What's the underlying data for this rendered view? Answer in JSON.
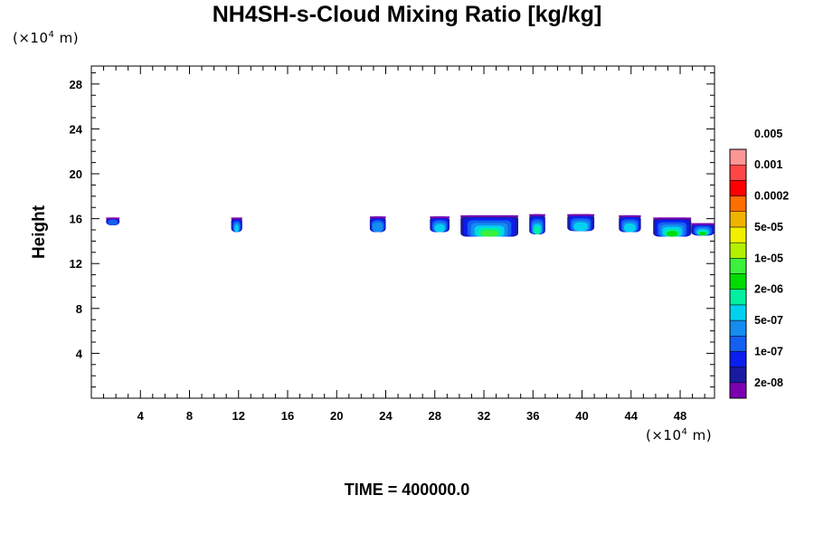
{
  "chart_data": {
    "type": "heatmap",
    "title": "NH4SH-s-Cloud Mixing Ratio [kg/kg]",
    "ylabel": "Height",
    "xlabel": "",
    "x_unit": "(×10⁴ m)",
    "y_unit": "(×10⁴ m)",
    "x_unit_base": "(×10",
    "y_unit_base": "(×10",
    "unit_exp": "4",
    "unit_tail": " m)",
    "xlim": [
      0,
      50.8
    ],
    "ylim": [
      0,
      29.6
    ],
    "x_ticks": [
      4,
      8,
      12,
      16,
      20,
      24,
      28,
      32,
      36,
      40,
      44,
      48
    ],
    "y_ticks": [
      4,
      8,
      12,
      16,
      20,
      24,
      28
    ],
    "colorbar": {
      "colors": [
        "#7b00b0",
        "#1a1aa0",
        "#0a1ef0",
        "#1460f0",
        "#148cf0",
        "#00d2f0",
        "#00f0a0",
        "#00dc00",
        "#3cf03c",
        "#b4f000",
        "#f0f000",
        "#f0b400",
        "#ff6e00",
        "#ff0000",
        "#ff4646",
        "#ff9696"
      ],
      "labels": [
        "2e-08",
        "1e-07",
        "5e-07",
        "2e-06",
        "1e-05",
        "5e-05",
        "0.0002",
        "0.001",
        "0.005"
      ]
    },
    "cloud_blobs": [
      {
        "x": [
          1.2,
          2.3
        ],
        "y": [
          15.4,
          16.1
        ],
        "level": 2
      },
      {
        "x": [
          11.4,
          12.3
        ],
        "y": [
          14.8,
          16.1
        ],
        "level": 4
      },
      {
        "x": [
          22.7,
          24.0
        ],
        "y": [
          14.8,
          16.2
        ],
        "level": 3
      },
      {
        "x": [
          27.6,
          29.2
        ],
        "y": [
          14.8,
          16.2
        ],
        "level": 4
      },
      {
        "x": [
          30.1,
          34.8
        ],
        "y": [
          14.4,
          16.3
        ],
        "level": 7
      },
      {
        "x": [
          35.7,
          37.0
        ],
        "y": [
          14.6,
          16.4
        ],
        "level": 5
      },
      {
        "x": [
          38.8,
          41.0
        ],
        "y": [
          14.9,
          16.4
        ],
        "level": 4
      },
      {
        "x": [
          43.0,
          44.8
        ],
        "y": [
          14.8,
          16.3
        ],
        "level": 4
      },
      {
        "x": [
          45.8,
          48.9
        ],
        "y": [
          14.4,
          16.1
        ],
        "level": 6
      },
      {
        "x": [
          48.9,
          50.8
        ],
        "y": [
          14.5,
          15.6
        ],
        "level": 6
      }
    ],
    "grid": false
  },
  "time_label": "TIME = 400000.0"
}
